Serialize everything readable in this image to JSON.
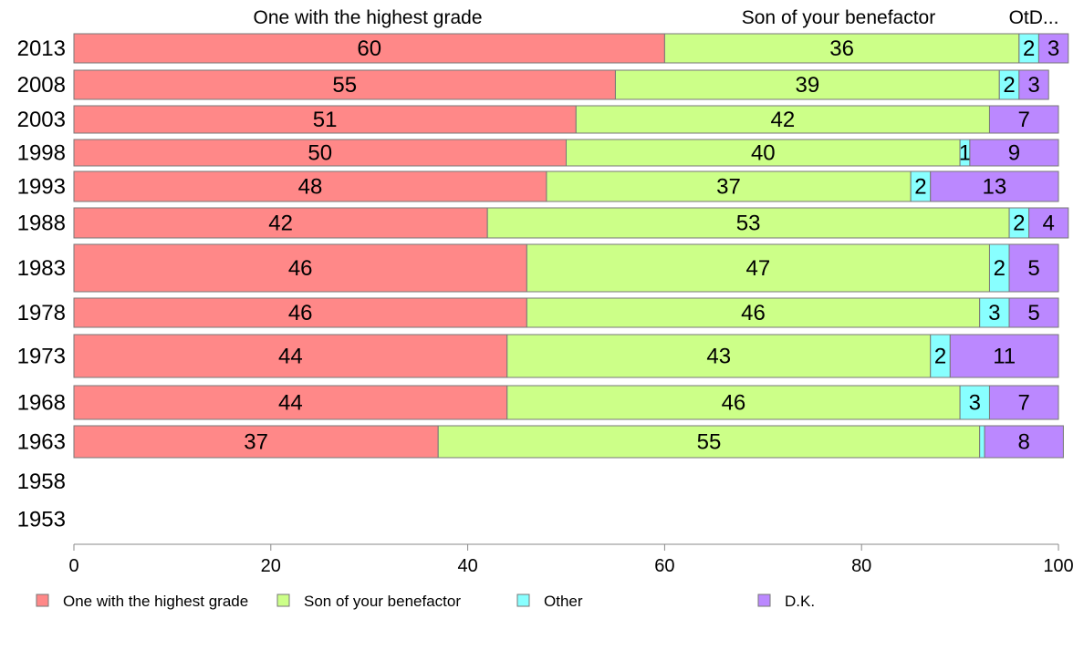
{
  "chart_data": {
    "type": "bar",
    "orientation": "horizontal",
    "stacked": true,
    "column_headers": [
      "One with the highest grade",
      "Son of your benefactor",
      "OtD..."
    ],
    "categories": [
      "2013",
      "2008",
      "2003",
      "1998",
      "1993",
      "1988",
      "1983",
      "1978",
      "1973",
      "1968",
      "1963",
      "1958",
      "1953"
    ],
    "series": [
      {
        "name": "One with the highest grade",
        "color": "#ff8888",
        "values": [
          60,
          55,
          51,
          50,
          48,
          42,
          46,
          46,
          44,
          44,
          37,
          null,
          null
        ],
        "labels": [
          "60",
          "55",
          "51",
          "50",
          "48",
          "42",
          "46",
          "46",
          "44",
          "44",
          "37",
          "",
          ""
        ]
      },
      {
        "name": "Son of your benefactor",
        "color": "#ccff88",
        "values": [
          36,
          39,
          42,
          40,
          37,
          53,
          47,
          46,
          43,
          46,
          55,
          null,
          null
        ],
        "labels": [
          "36",
          "39",
          "42",
          "40",
          "37",
          "53",
          "47",
          "46",
          "43",
          "46",
          "55",
          "",
          ""
        ]
      },
      {
        "name": "Other",
        "color": "#88ffff",
        "values": [
          2,
          2,
          0,
          1,
          2,
          2,
          2,
          3,
          2,
          3,
          0.5,
          null,
          null
        ],
        "labels": [
          "2",
          "2",
          "",
          "1",
          "2",
          "2",
          "2",
          "3",
          "2",
          "3",
          "",
          "",
          ""
        ]
      },
      {
        "name": "D.K.",
        "color": "#bb88ff",
        "values": [
          3,
          3,
          7,
          9,
          13,
          4,
          5,
          5,
          11,
          7,
          8,
          null,
          null
        ],
        "labels": [
          "3",
          "3",
          "7",
          "9",
          "13",
          "4",
          "5",
          "5",
          "11",
          "7",
          "8",
          "",
          ""
        ]
      }
    ],
    "xlim": [
      0,
      100
    ],
    "xticks": [
      "0",
      "20",
      "40",
      "60",
      "80",
      "100"
    ],
    "legend_position": "bottom",
    "grid": false
  }
}
